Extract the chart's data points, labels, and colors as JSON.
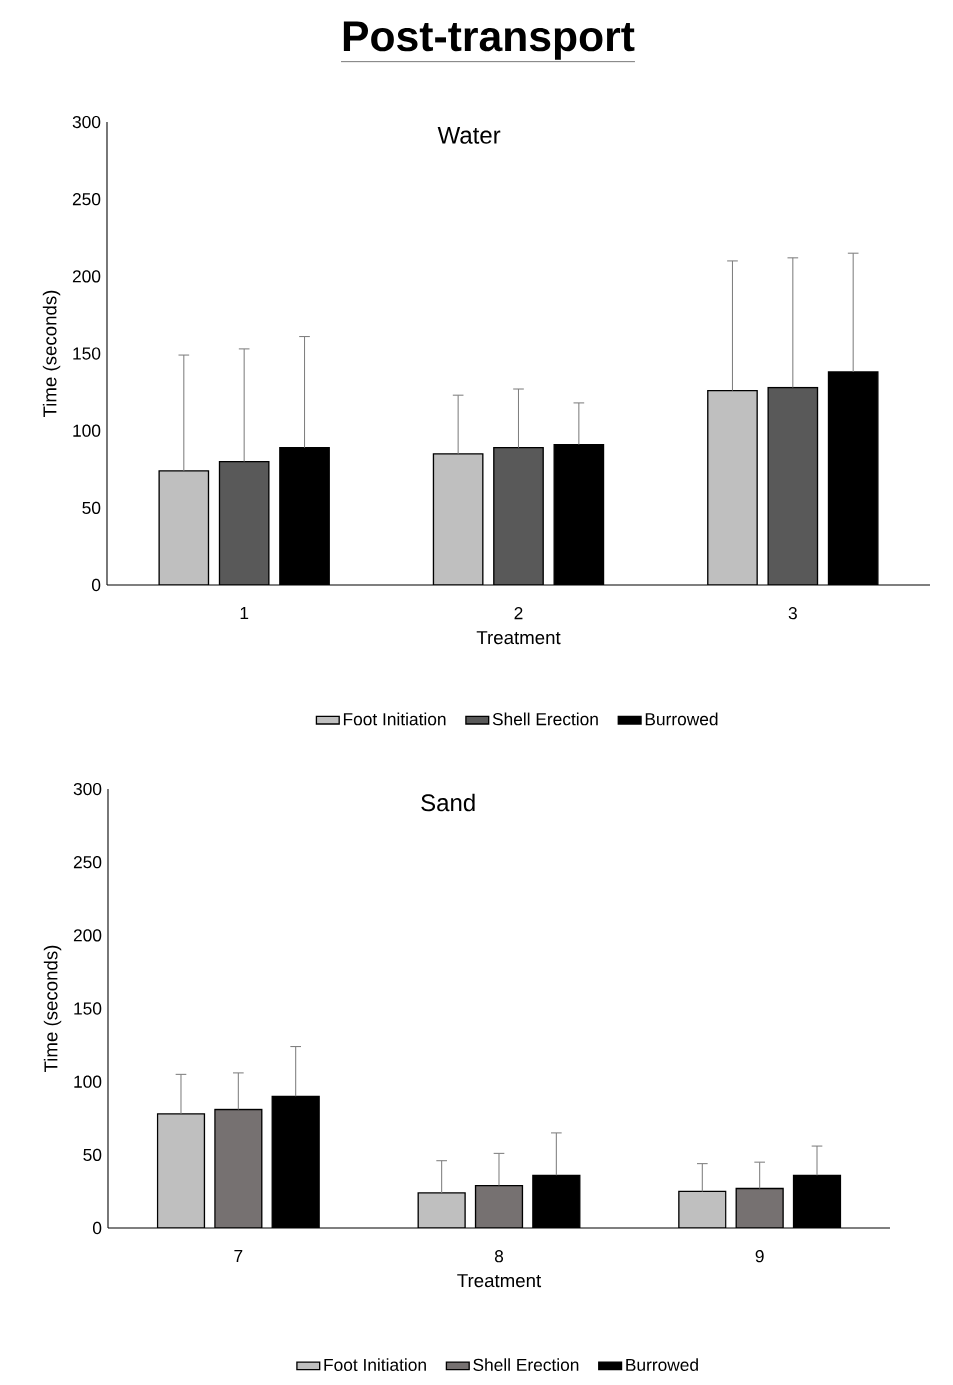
{
  "chart_data": [
    {
      "type": "bar",
      "title": "Water",
      "annotations": [
        "Post-transport"
      ],
      "xlabel": "Treatment",
      "ylabel": "Time (seconds)",
      "categories": [
        "1",
        "2",
        "3"
      ],
      "ylim": [
        0,
        300
      ],
      "yticks": [
        0,
        50,
        100,
        150,
        200,
        250,
        300
      ],
      "legend": "bottom",
      "series": [
        {
          "name": "Foot Initiation",
          "color": "#bfbfbf",
          "values": [
            74,
            85,
            126
          ],
          "errors": [
            [
              74,
              149
            ],
            [
              85,
              123
            ],
            [
              126,
              210
            ]
          ]
        },
        {
          "name": "Shell Erection",
          "color": "#595959",
          "values": [
            80,
            89,
            128
          ],
          "errors": [
            [
              80,
              153
            ],
            [
              89,
              127
            ],
            [
              128,
              212
            ]
          ]
        },
        {
          "name": "Burrowed",
          "color": "#000000",
          "values": [
            89,
            91,
            138
          ],
          "errors": [
            [
              89,
              161
            ],
            [
              91,
              118
            ],
            [
              138,
              215
            ]
          ]
        }
      ]
    },
    {
      "type": "bar",
      "title": "Sand",
      "xlabel": "Treatment",
      "ylabel": "Time (seconds)",
      "categories": [
        "7",
        "8",
        "9"
      ],
      "ylim": [
        0,
        300
      ],
      "yticks": [
        0,
        50,
        100,
        150,
        200,
        250,
        300
      ],
      "legend": "bottom",
      "series": [
        {
          "name": "Foot Initiation",
          "color": "#bfbfbf",
          "values": [
            78,
            24,
            25
          ],
          "errors": [
            [
              78,
              105
            ],
            [
              24,
              46
            ],
            [
              25,
              44
            ]
          ]
        },
        {
          "name": "Shell Erection",
          "color": "#767171",
          "values": [
            81,
            29,
            27
          ],
          "errors": [
            [
              81,
              106
            ],
            [
              29,
              51
            ],
            [
              27,
              45
            ]
          ]
        },
        {
          "name": "Burrowed",
          "color": "#000000",
          "values": [
            90,
            36,
            36
          ],
          "errors": [
            [
              90,
              124
            ],
            [
              36,
              65
            ],
            [
              36,
              56
            ]
          ]
        }
      ]
    }
  ]
}
